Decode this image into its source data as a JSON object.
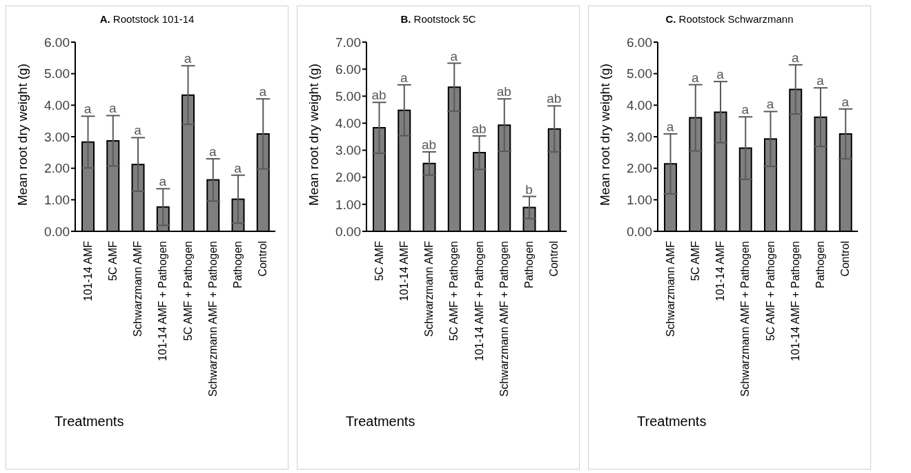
{
  "chart_data": [
    {
      "type": "bar",
      "title": "A. Rootstock 101-14",
      "xlabel": "Treatments",
      "ylabel": "Mean root dry weight (g)",
      "categories": [
        "101-14 AMF",
        "5C AMF",
        "Schwarzmann AMF",
        "101-14 AMF + Pathogen",
        "5C AMF + Pathogen",
        "Schwarzmann AMF + Pathogen",
        "Pathogen",
        "Control"
      ],
      "series": [
        {
          "color": "#7f7f7f",
          "values": [
            2.83,
            2.87,
            2.12,
            0.77,
            4.32,
            1.63,
            1.02,
            3.09
          ],
          "errors": [
            0.82,
            0.8,
            0.85,
            0.58,
            0.93,
            0.67,
            0.76,
            1.11
          ]
        }
      ],
      "ylim": [
        0,
        6
      ],
      "yticks": [
        {
          "value": 0,
          "label": "0.00"
        },
        {
          "value": 1,
          "label": "1.00"
        },
        {
          "value": 2,
          "label": "2.00"
        },
        {
          "value": 3,
          "label": "3.00"
        },
        {
          "value": 4,
          "label": "4.00"
        },
        {
          "value": 5,
          "label": "5.00"
        },
        {
          "value": 6,
          "label": "6.00"
        }
      ],
      "grid": false,
      "legend": false,
      "annotations": [
        {
          "text": "a",
          "x": "101-14 AMF",
          "y": 3.65
        },
        {
          "text": "a",
          "x": "5C AMF",
          "y": 3.67
        },
        {
          "text": "a",
          "x": "Schwarzmann AMF",
          "y": 2.97
        },
        {
          "text": "a",
          "x": "101-14 AMF + Pathogen",
          "y": 1.35
        },
        {
          "text": "a",
          "x": "5C AMF + Pathogen",
          "y": 5.25
        },
        {
          "text": "a",
          "x": "Schwarzmann AMF + Pathogen",
          "y": 2.3
        },
        {
          "text": "a",
          "x": "Pathogen",
          "y": 1.78
        },
        {
          "text": "a",
          "x": "Control",
          "y": 4.2
        }
      ]
    },
    {
      "type": "bar",
      "title": "B. Rootstock 5C",
      "xlabel": "Treatments",
      "ylabel": "Mean root dry weight (g)",
      "categories": [
        "5C AMF",
        "101-14 AMF",
        "Schwarzmann AMF",
        "5C AMF + Pathogen",
        "101-14 AMF + Pathogen",
        "Schwarzmann AMF + Pathogen",
        "Pathogen",
        "Control"
      ],
      "series": [
        {
          "color": "#7f7f7f",
          "values": [
            3.83,
            4.48,
            2.51,
            5.33,
            2.91,
            3.93,
            0.88,
            3.79
          ],
          "errors": [
            0.94,
            0.94,
            0.43,
            0.89,
            0.62,
            0.97,
            0.41,
            0.85
          ]
        }
      ],
      "ylim": [
        0,
        7
      ],
      "yticks": [
        {
          "value": 0,
          "label": "0.00"
        },
        {
          "value": 1,
          "label": "1.00"
        },
        {
          "value": 2,
          "label": "2.00"
        },
        {
          "value": 3,
          "label": "3.00"
        },
        {
          "value": 4,
          "label": "4.00"
        },
        {
          "value": 5,
          "label": "5.00"
        },
        {
          "value": 6,
          "label": "6.00"
        },
        {
          "value": 7,
          "label": "7.00"
        }
      ],
      "grid": false,
      "legend": false,
      "annotations": [
        {
          "text": "ab",
          "x": "5C AMF",
          "y": 4.77
        },
        {
          "text": "a",
          "x": "101-14 AMF",
          "y": 5.42
        },
        {
          "text": "ab",
          "x": "Schwarzmann AMF",
          "y": 2.94
        },
        {
          "text": "a",
          "x": "5C AMF + Pathogen",
          "y": 6.22
        },
        {
          "text": "ab",
          "x": "101-14 AMF + Pathogen",
          "y": 3.53
        },
        {
          "text": "ab",
          "x": "Schwarzmann AMF + Pathogen",
          "y": 4.9
        },
        {
          "text": "b",
          "x": "Pathogen",
          "y": 1.29
        },
        {
          "text": "ab",
          "x": "Control",
          "y": 4.64
        }
      ]
    },
    {
      "type": "bar",
      "title": "C. Rootstock Schwarzmann",
      "xlabel": "Treatments",
      "ylabel": "Mean root dry weight (g)",
      "categories": [
        "Schwarzmann AMF",
        "5C AMF",
        "101-14 AMF",
        "Schwarzmann AMF + Pathogen",
        "5C AMF + Pathogen",
        "101-14 AMF + Pathogen",
        "Pathogen",
        "Control"
      ],
      "series": [
        {
          "color": "#7f7f7f",
          "values": [
            2.14,
            3.6,
            3.78,
            2.64,
            2.93,
            4.5,
            3.62,
            3.09
          ],
          "errors": [
            0.95,
            1.05,
            0.97,
            0.99,
            0.87,
            0.78,
            0.93,
            0.79
          ]
        }
      ],
      "ylim": [
        0,
        6
      ],
      "yticks": [
        {
          "value": 0,
          "label": "0.00"
        },
        {
          "value": 1,
          "label": "1.00"
        },
        {
          "value": 2,
          "label": "2.00"
        },
        {
          "value": 3,
          "label": "3.00"
        },
        {
          "value": 4,
          "label": "4.00"
        },
        {
          "value": 5,
          "label": "5.00"
        },
        {
          "value": 6,
          "label": "6.00"
        }
      ],
      "grid": false,
      "legend": false,
      "annotations": [
        {
          "text": "a",
          "x": "Schwarzmann AMF",
          "y": 3.09
        },
        {
          "text": "a",
          "x": "5C AMF",
          "y": 4.65
        },
        {
          "text": "a",
          "x": "101-14 AMF",
          "y": 4.75
        },
        {
          "text": "a",
          "x": "Schwarzmann AMF + Pathogen",
          "y": 3.63
        },
        {
          "text": "a",
          "x": "5C AMF + Pathogen",
          "y": 3.8
        },
        {
          "text": "a",
          "x": "101-14 AMF + Pathogen",
          "y": 5.28
        },
        {
          "text": "a",
          "x": "Pathogen",
          "y": 4.55
        },
        {
          "text": "a",
          "x": "Control",
          "y": 3.88
        }
      ]
    }
  ]
}
